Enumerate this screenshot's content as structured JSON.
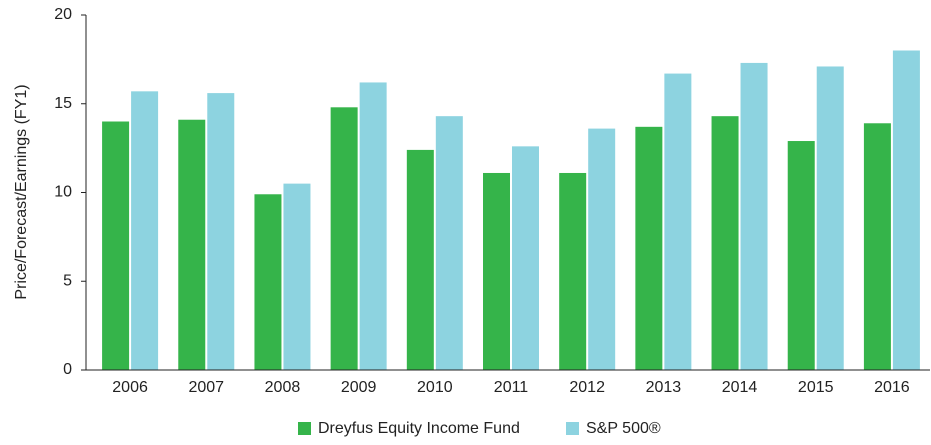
{
  "chart_data": {
    "type": "bar",
    "y_label": "Price/Forecast/Earnings (FY1)",
    "categories": [
      "2006",
      "2007",
      "2008",
      "2009",
      "2010",
      "2011",
      "2012",
      "2013",
      "2014",
      "2015",
      "2016"
    ],
    "series": [
      {
        "name": "Dreyfus Equity Income Fund",
        "color": "#35b44a",
        "values": [
          14.0,
          14.1,
          9.9,
          14.8,
          12.4,
          11.1,
          11.1,
          13.7,
          14.3,
          12.9,
          13.9
        ]
      },
      {
        "name": "S&P 500®",
        "color": "#8dd3e0",
        "values": [
          15.7,
          15.6,
          10.5,
          16.2,
          14.3,
          12.6,
          13.6,
          16.7,
          17.3,
          17.1,
          18.0
        ]
      }
    ],
    "ylim": [
      0,
      20
    ],
    "yticks": [
      0,
      5,
      10,
      15,
      20
    ],
    "grid": false,
    "legend": "bottom"
  }
}
